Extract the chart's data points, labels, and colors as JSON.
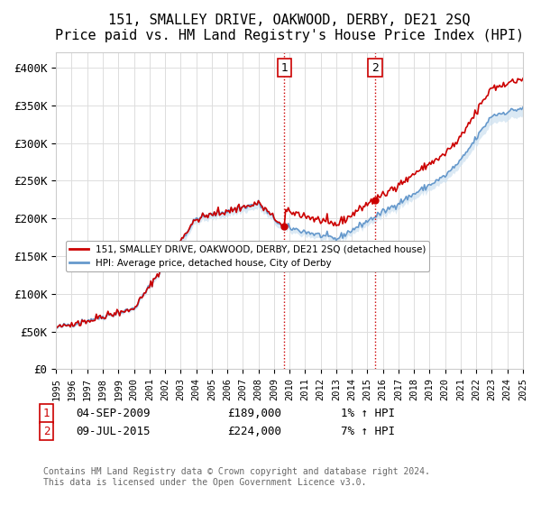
{
  "title": "151, SMALLEY DRIVE, OAKWOOD, DERBY, DE21 2SQ",
  "subtitle": "Price paid vs. HM Land Registry's House Price Index (HPI)",
  "xlabel": "",
  "ylabel": "",
  "ylim": [
    0,
    420000
  ],
  "yticks": [
    0,
    50000,
    100000,
    150000,
    200000,
    250000,
    300000,
    350000,
    400000
  ],
  "ytick_labels": [
    "£0",
    "£50K",
    "£100K",
    "£150K",
    "£200K",
    "£250K",
    "£300K",
    "£350K",
    "£400K"
  ],
  "x_start_year": 1995,
  "x_end_year": 2025,
  "line_color_hpi": "#6699cc",
  "line_color_price": "#cc0000",
  "sale1_date": "04-SEP-2009",
  "sale1_price": 189000,
  "sale1_pct": "1%",
  "sale2_date": "09-JUL-2015",
  "sale2_price": 224000,
  "sale2_pct": "7%",
  "legend_label1": "151, SMALLEY DRIVE, OAKWOOD, DERBY, DE21 2SQ (detached house)",
  "legend_label2": "HPI: Average price, detached house, City of Derby",
  "footer": "Contains HM Land Registry data © Crown copyright and database right 2024.\nThis data is licensed under the Open Government Licence v3.0.",
  "background_color": "#ffffff",
  "grid_color": "#dddddd",
  "vline_color": "#cc0000",
  "vline_style": ":",
  "sale_marker_color": "#cc0000",
  "hpi_fill_color": "#cce0f0"
}
